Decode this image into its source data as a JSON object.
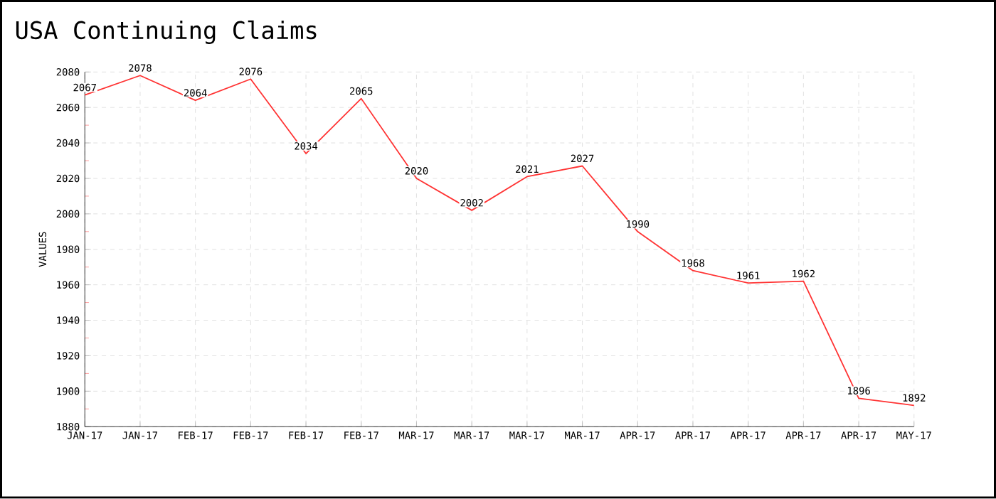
{
  "chart_data": {
    "type": "line",
    "title": "USA Continuing Claims",
    "ylabel": "VALUES",
    "categories": [
      "JAN-17",
      "JAN-17",
      "FEB-17",
      "FEB-17",
      "FEB-17",
      "FEB-17",
      "MAR-17",
      "MAR-17",
      "MAR-17",
      "MAR-17",
      "APR-17",
      "APR-17",
      "APR-17",
      "APR-17",
      "APR-17",
      "MAY-17"
    ],
    "values": [
      2067,
      2078,
      2064,
      2076,
      2034,
      2065,
      2020,
      2002,
      2021,
      2027,
      1990,
      1968,
      1961,
      1962,
      1896,
      1892
    ],
    "color": "#ff3333",
    "ylim": [
      1880,
      2080
    ],
    "yticks": [
      1880,
      1900,
      1920,
      1940,
      1960,
      1980,
      2000,
      2020,
      2040,
      2060,
      2080
    ],
    "grid": true,
    "data_labels": true,
    "marker": "none",
    "line_style": "solid"
  }
}
